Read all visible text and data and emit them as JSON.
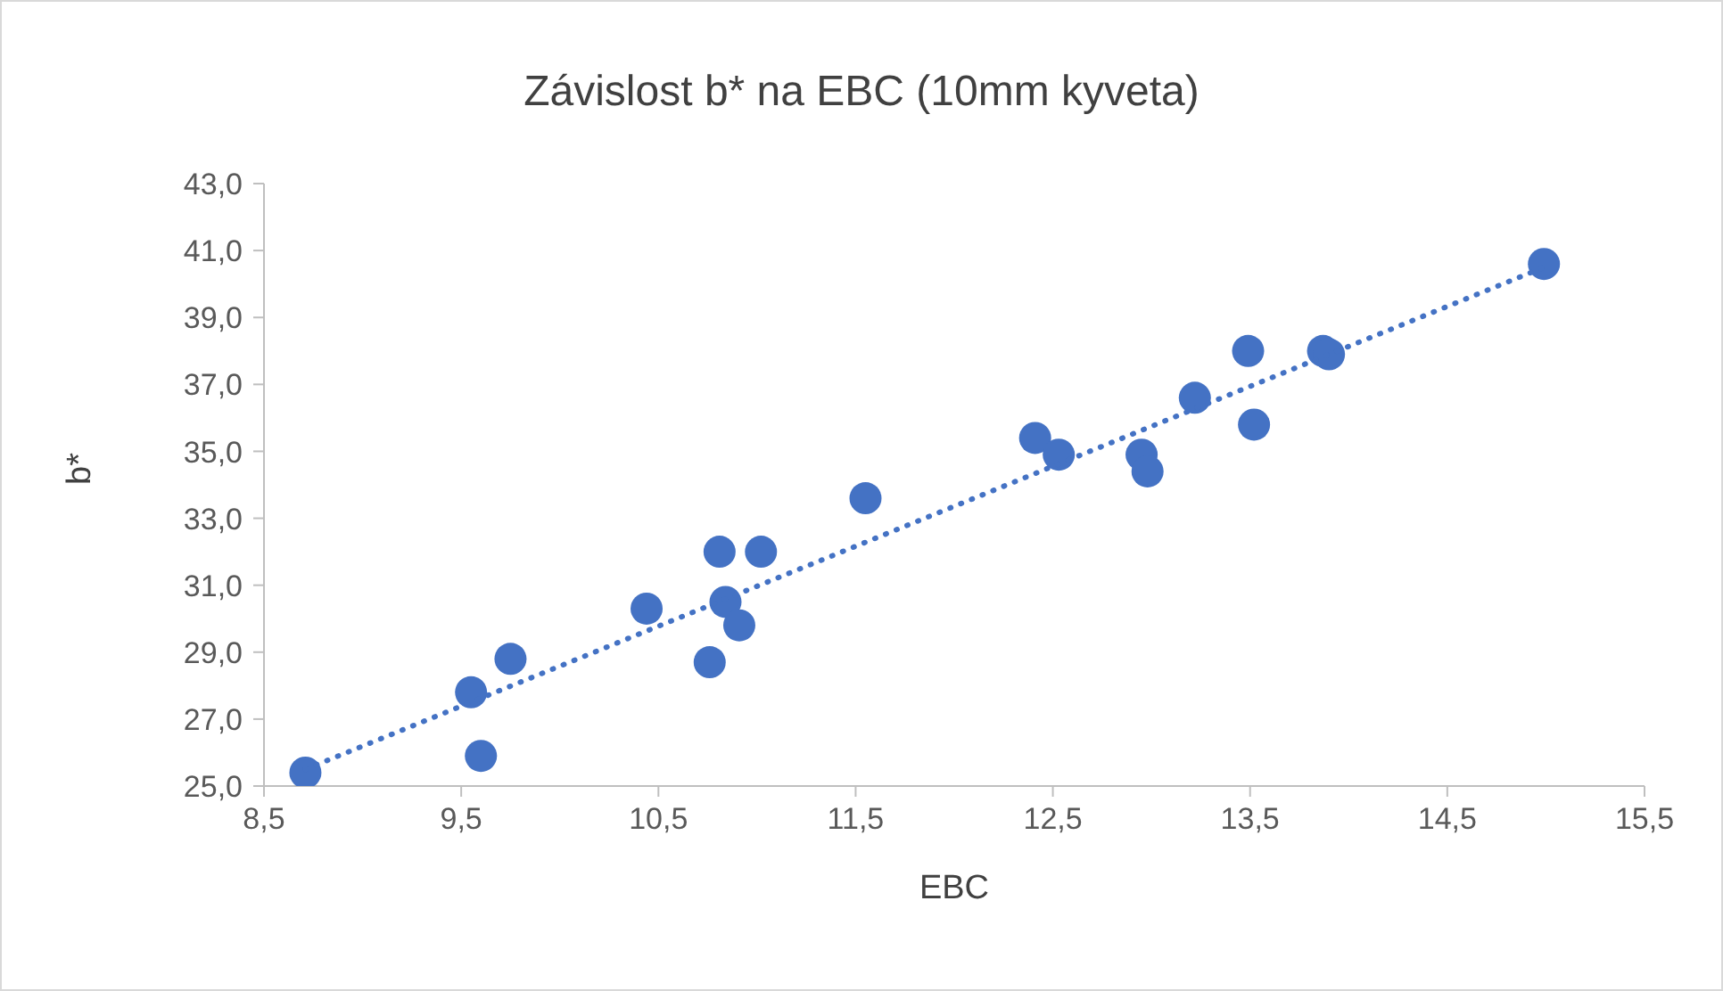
{
  "chart_data": {
    "type": "scatter",
    "title": "Závislost b* na EBC (10mm kyveta)",
    "xlabel": "EBC",
    "ylabel": "b*",
    "series": [
      {
        "color": "#4472c4",
        "x": [
          8.71,
          9.55,
          9.6,
          9.75,
          10.44,
          10.76,
          10.81,
          10.84,
          10.91,
          11.02,
          11.55,
          12.41,
          12.53,
          12.95,
          12.98,
          13.22,
          13.49,
          13.52,
          13.87,
          13.9,
          14.99
        ],
        "values": [
          25.4,
          27.8,
          25.9,
          28.8,
          30.3,
          28.7,
          32.0,
          30.5,
          29.8,
          32.0,
          33.6,
          35.4,
          34.9,
          34.9,
          34.4,
          36.6,
          38.0,
          35.8,
          38.0,
          37.9,
          40.6
        ],
        "marker": "circle"
      },
      {
        "type": "line",
        "color": "#4472c4",
        "x": [
          8.71,
          14.99
        ],
        "values": [
          25.5,
          40.5
        ],
        "line_style": "dotted",
        "marker": "none"
      }
    ],
    "xlim": [
      8.5,
      15.5
    ],
    "xticks": [
      {
        "value": 8.5,
        "label": "8,5"
      },
      {
        "value": 9.5,
        "label": "9,5"
      },
      {
        "value": 10.5,
        "label": "10,5"
      },
      {
        "value": 11.5,
        "label": "11,5"
      },
      {
        "value": 12.5,
        "label": "12,5"
      },
      {
        "value": 13.5,
        "label": "13,5"
      },
      {
        "value": 14.5,
        "label": "14,5"
      },
      {
        "value": 15.5,
        "label": "15,5"
      }
    ],
    "ylim": [
      25,
      43
    ],
    "yticks": [
      {
        "value": 25,
        "label": "25,0"
      },
      {
        "value": 27,
        "label": "27,0"
      },
      {
        "value": 29,
        "label": "29,0"
      },
      {
        "value": 31,
        "label": "31,0"
      },
      {
        "value": 33,
        "label": "33,0"
      },
      {
        "value": 35,
        "label": "35,0"
      },
      {
        "value": 37,
        "label": "37,0"
      },
      {
        "value": 39,
        "label": "39,0"
      },
      {
        "value": 41,
        "label": "41,0"
      },
      {
        "value": 43,
        "label": "43,0"
      }
    ],
    "grid": false,
    "legend": false
  }
}
